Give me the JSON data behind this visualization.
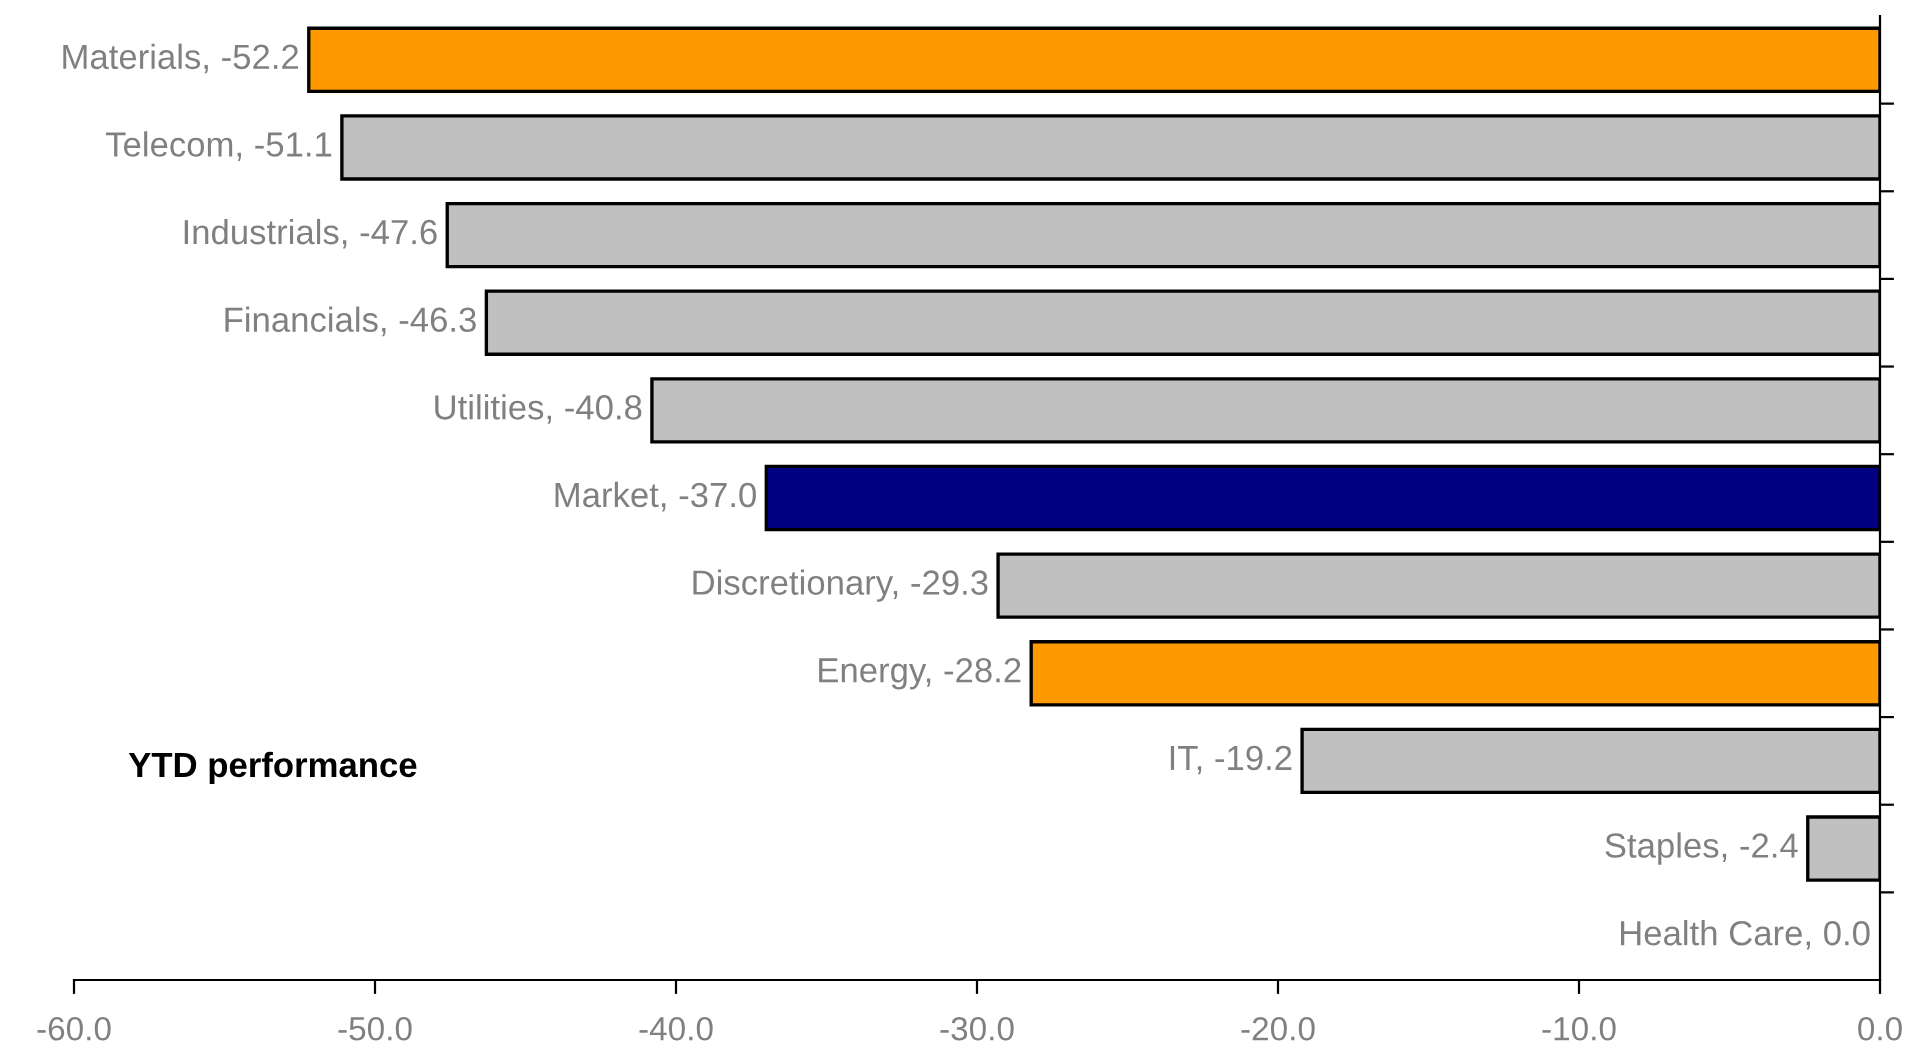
{
  "chart_data": {
    "type": "bar",
    "orientation": "horizontal",
    "title": "YTD performance",
    "categories": [
      "Materials, -52.2",
      "Telecom, -51.1",
      "Industrials, -47.6",
      "Financials, -46.3",
      "Utilities, -40.8",
      "Market, -37.0",
      "Discretionary, -29.3",
      "Energy, -28.2",
      "IT, -19.2",
      "Staples, -2.4",
      "Health Care, 0.0"
    ],
    "values": [
      -52.2,
      -51.1,
      -47.6,
      -46.3,
      -40.8,
      -37.0,
      -29.3,
      -28.2,
      -19.2,
      -2.4,
      0.0
    ],
    "colors": [
      "#ff9900",
      "#c0c0c0",
      "#c0c0c0",
      "#c0c0c0",
      "#c0c0c0",
      "#000080",
      "#c0c0c0",
      "#ff9900",
      "#c0c0c0",
      "#c0c0c0",
      "#c0c0c0"
    ],
    "xlim": [
      -60,
      0
    ],
    "xticks": [
      {
        "value": -60,
        "label": "-60.0"
      },
      {
        "value": -50,
        "label": "-50.0"
      },
      {
        "value": -40,
        "label": "-40.0"
      },
      {
        "value": -30,
        "label": "-30.0"
      },
      {
        "value": -20,
        "label": "-20.0"
      },
      {
        "value": -10,
        "label": "-10.0"
      },
      {
        "value": 0,
        "label": "0.0"
      }
    ],
    "grid": false,
    "legend": false
  }
}
